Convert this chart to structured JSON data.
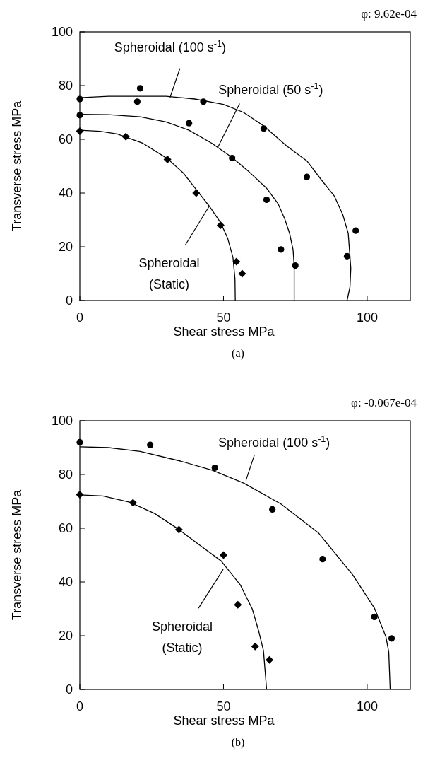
{
  "chart_data": [
    {
      "type": "scatter",
      "title": "φ: 9.62e-04",
      "xlabel": "Shear stress MPa",
      "ylabel": "Transverse stress MPa",
      "xlim": [
        0,
        115
      ],
      "ylim": [
        0,
        100
      ],
      "xticks": [
        0,
        50,
        100
      ],
      "yticks": [
        0,
        20,
        40,
        60,
        80,
        100
      ],
      "grid": false,
      "series": [
        {
          "type": "line",
          "marker": "none",
          "color": "#000000",
          "x": [
            0,
            10,
            20,
            30,
            40,
            50,
            57,
            64,
            72,
            79,
            84,
            88.5,
            91.5,
            93.4,
            94.3,
            94,
            93
          ],
          "values": [
            75.5,
            76,
            76,
            76,
            75,
            73,
            70,
            65,
            57.5,
            52,
            45,
            39,
            32,
            25,
            12,
            5,
            0
          ]
        },
        {
          "type": "line",
          "marker": "none",
          "color": "#000000",
          "x": [
            0,
            10,
            21,
            30,
            38,
            46,
            53,
            59,
            65,
            69,
            71.3,
            73,
            74.2,
            74.6,
            74.6
          ],
          "values": [
            69.3,
            69.2,
            68.4,
            66.5,
            63.4,
            58.5,
            53.2,
            47.8,
            41.8,
            36,
            30.4,
            25,
            19,
            13,
            0
          ]
        },
        {
          "type": "line",
          "marker": "none",
          "color": "#000000",
          "x": [
            0,
            7,
            13,
            22,
            30.5,
            36,
            40,
            45,
            49,
            51.5,
            53.3,
            54,
            54.1
          ],
          "values": [
            63.4,
            63,
            62,
            58.5,
            52.8,
            47.5,
            42,
            35.2,
            29,
            23,
            16,
            8,
            0
          ]
        },
        {
          "type": "scatter",
          "marker": "circle",
          "color": "#000000",
          "x": [
            0,
            21,
            20,
            43,
            64,
            79,
            96,
            93
          ],
          "values": [
            75,
            79,
            74,
            74,
            64,
            46,
            26,
            16.5
          ]
        },
        {
          "type": "scatter",
          "marker": "circle",
          "color": "#000000",
          "x": [
            0,
            38,
            53,
            65,
            70,
            75
          ],
          "values": [
            69,
            66,
            53,
            37.5,
            19,
            13
          ]
        },
        {
          "type": "scatter",
          "marker": "diamond",
          "color": "#000000",
          "x": [
            0,
            16,
            30.5,
            40.5,
            49,
            54.5,
            56.5
          ],
          "values": [
            63,
            61,
            52.5,
            40,
            28,
            14.5,
            10
          ]
        }
      ],
      "annotations": [
        {
          "text": "Spheroidal (100 s$^{-1}$)",
          "x": 31.4,
          "y": 75.6
        },
        {
          "text": "Spheroidal (50 s$^{-1}$)",
          "x": 48,
          "y": 57
        },
        {
          "text": "Spheroidal\n(Static)",
          "x": 45.1,
          "y": 35.2
        },
        "(a)"
      ]
    },
    {
      "type": "scatter",
      "title": "φ: -0.067e-04",
      "xlabel": "Shear stress MPa",
      "ylabel": "Transverse stress MPa",
      "xlim": [
        0,
        115
      ],
      "ylim": [
        0,
        100
      ],
      "xticks": [
        0,
        50,
        100
      ],
      "yticks": [
        0,
        20,
        40,
        60,
        80,
        100
      ],
      "grid": false,
      "series": [
        {
          "type": "line",
          "marker": "none",
          "color": "#000000",
          "x": [
            0,
            10,
            21,
            35,
            46,
            57,
            70,
            83,
            95,
            102.5,
            106.5,
            107.5,
            108
          ],
          "values": [
            90.3,
            90,
            88.6,
            85,
            81.6,
            76.8,
            69,
            58.3,
            42.6,
            30.3,
            19.7,
            14,
            0
          ]
        },
        {
          "type": "line",
          "marker": "none",
          "color": "#000000",
          "x": [
            0,
            8,
            17.3,
            26,
            33.7,
            42,
            49.2,
            55.8,
            60,
            62.3,
            63.9,
            65
          ],
          "values": [
            72.4,
            72,
            69.7,
            65.5,
            60.1,
            53.5,
            47.8,
            39,
            30,
            21.5,
            14.5,
            0
          ]
        },
        {
          "type": "scatter",
          "marker": "circle",
          "color": "#000000",
          "x": [
            0,
            24.5,
            47,
            67,
            84.5,
            102.5,
            108.5
          ],
          "values": [
            92,
            91,
            82.5,
            67,
            48.5,
            27,
            19
          ]
        },
        {
          "type": "scatter",
          "marker": "diamond",
          "color": "#000000",
          "x": [
            0,
            18.5,
            34.5,
            50,
            55,
            61,
            66
          ],
          "values": [
            72.5,
            69.5,
            59.5,
            50,
            31.5,
            16,
            11
          ]
        }
      ],
      "annotations": [
        {
          "text": "Spheroidal (100 s$^{-1}$)",
          "x": 57.8,
          "y": 77.8
        },
        {
          "text": "Spheroidal\n(Static)",
          "x": 49.9,
          "y": 44.7
        },
        "(b)"
      ]
    }
  ]
}
